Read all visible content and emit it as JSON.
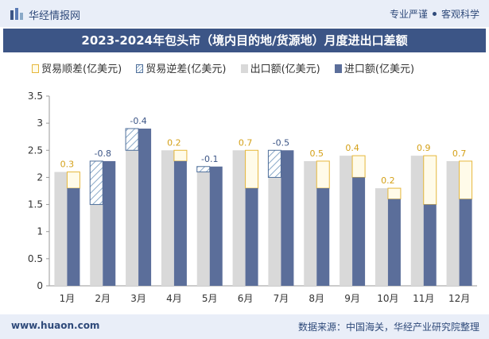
{
  "header": {
    "brand": "华经情报网",
    "tag1": "专业严谨",
    "tag2": "客观科学"
  },
  "title": "2023-2024年包头市（境内目的地/货源地）月度进出口差额",
  "legend": {
    "shun": "贸易顺差(亿美元)",
    "ni": "贸易逆差(亿美元)",
    "exp": "出口额(亿美元)",
    "imp": "进口额(亿美元)"
  },
  "footer": {
    "site": "www.huaon.com",
    "source": "数据来源：中国海关，华经产业研究院整理"
  },
  "colors": {
    "export": "#d9d9d9",
    "import": "#5b6e9a",
    "surplus_border": "#e6b73b",
    "deficit_border": "#4f6f9a",
    "surplus_label": "#d4a017",
    "deficit_label": "#3c5586"
  },
  "chart_data": {
    "type": "bar",
    "categories": [
      "1月",
      "2月",
      "3月",
      "4月",
      "5月",
      "6月",
      "7月",
      "8月",
      "9月",
      "10月",
      "11月",
      "12月"
    ],
    "series": [
      {
        "name": "出口额(亿美元)",
        "values": [
          2.1,
          1.5,
          2.5,
          2.5,
          2.1,
          2.5,
          2.0,
          2.3,
          2.4,
          1.8,
          2.4,
          2.3
        ]
      },
      {
        "name": "进口额(亿美元)",
        "values": [
          1.8,
          2.3,
          2.9,
          2.3,
          2.2,
          1.8,
          2.5,
          1.8,
          2.0,
          1.6,
          1.5,
          1.6
        ]
      }
    ],
    "balance": [
      0.3,
      -0.8,
      -0.4,
      0.2,
      -0.1,
      0.7,
      -0.5,
      0.5,
      0.4,
      0.2,
      0.9,
      0.7
    ],
    "balance_labels": [
      "0.3",
      "-0.8",
      "-0.4",
      "0.2",
      "-0.1",
      "0.7",
      "-0.5",
      "0.5",
      "0.4",
      "0.2",
      "0.9",
      "0.7"
    ],
    "y_ticks": [
      "0",
      "0.5",
      "1",
      "1.5",
      "2",
      "2.5",
      "3",
      "3.5"
    ],
    "ylim": [
      0,
      3.5
    ]
  }
}
